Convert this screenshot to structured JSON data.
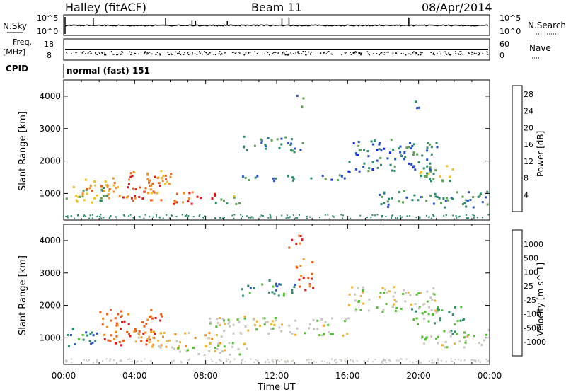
{
  "header": {
    "station": "Halley (fitACF)",
    "beam": "Beam 11",
    "date": "08/Apr/2014"
  },
  "panels": {
    "nsky": {
      "label": "N.Sky",
      "ticks": [
        "10^5",
        "10^0"
      ],
      "right_ticks": [
        "10^5",
        "10^0"
      ],
      "right_label": "N.Search"
    },
    "freq": {
      "label_line1": "Freq.",
      "label_line2": "[MHz]",
      "ticks": [
        "18",
        "8"
      ],
      "right_ticks": [
        "60",
        "0"
      ],
      "right_label": "Nave"
    },
    "cpid": {
      "label": "CPID",
      "value": "normal (fast) 151"
    }
  },
  "colors": {
    "power_scale": [
      "#1428ff",
      "#2850c8",
      "#2a8c6a",
      "#5aa050",
      "#f0c020",
      "#f59020",
      "#f05a14",
      "#e61414"
    ],
    "velocity_scale": [
      "#e61414",
      "#f05a14",
      "#f59020",
      "#f0b030",
      "#c8c8c0",
      "#50c030",
      "#2a8c6a",
      "#2850c8",
      "#1428ff"
    ]
  },
  "chart_data": [
    {
      "type": "heatmap",
      "title": "Power",
      "xlabel": "",
      "ylabel": "Slant Range [km]",
      "xlim": [
        "00:00",
        "00:00"
      ],
      "ylim": [
        180,
        4500
      ],
      "x_ticks": [
        "00:00",
        "04:00",
        "08:00",
        "12:00",
        "16:00",
        "20:00",
        "00:00"
      ],
      "y_ticks": [
        1000,
        2000,
        3000,
        4000
      ],
      "colorbar": {
        "label": "Power [dB]",
        "ticks": [
          4,
          8,
          12,
          16,
          20,
          24,
          28
        ],
        "range": [
          0,
          30
        ]
      },
      "blobs": [
        {
          "t0": 0.1,
          "t1": 2.5,
          "r0": 700,
          "r1": 1300,
          "level": 14
        },
        {
          "t0": 1.0,
          "t1": 3.2,
          "r0": 800,
          "r1": 1500,
          "level": 20
        },
        {
          "t0": 3.0,
          "t1": 5.5,
          "r0": 800,
          "r1": 1700,
          "level": 24
        },
        {
          "t0": 4.5,
          "t1": 6.0,
          "r0": 1000,
          "r1": 1800,
          "level": 20
        },
        {
          "t0": 6.0,
          "t1": 8.5,
          "r0": 700,
          "r1": 1100,
          "level": 26
        },
        {
          "t0": 8.5,
          "t1": 10.0,
          "r0": 700,
          "r1": 1000,
          "level": 14
        },
        {
          "t0": 10.0,
          "t1": 16.0,
          "r0": 1400,
          "r1": 1600,
          "level": 8
        },
        {
          "t0": 10.0,
          "t1": 13.5,
          "r0": 2300,
          "r1": 2800,
          "level": 10
        },
        {
          "t0": 13.0,
          "t1": 13.5,
          "r0": 3700,
          "r1": 4100,
          "level": 8
        },
        {
          "t0": 16.0,
          "t1": 21.0,
          "r0": 1700,
          "r1": 2700,
          "level": 8
        },
        {
          "t0": 20.0,
          "t1": 22.0,
          "r0": 1300,
          "r1": 1900,
          "level": 12
        },
        {
          "t0": 17.5,
          "t1": 24.0,
          "r0": 600,
          "r1": 1100,
          "level": 10
        },
        {
          "t0": 19.5,
          "t1": 20.0,
          "r0": 3500,
          "r1": 3900,
          "level": 8
        }
      ]
    },
    {
      "type": "heatmap",
      "title": "Velocity",
      "xlabel": "Time UT",
      "ylabel": "Slant Range [km]",
      "xlim": [
        "00:00",
        "00:00"
      ],
      "ylim": [
        180,
        4500
      ],
      "x_ticks": [
        "00:00",
        "04:00",
        "08:00",
        "12:00",
        "16:00",
        "20:00",
        "00:00"
      ],
      "y_ticks": [
        1000,
        2000,
        3000,
        4000
      ],
      "colorbar": {
        "label": "Velocity [m s^-1]",
        "ticks": [
          "1000",
          "500",
          "100",
          "25",
          "-25",
          "-100",
          "-500",
          "-1000"
        ]
      },
      "blobs": [
        {
          "t0": 0.1,
          "t1": 2.0,
          "r0": 700,
          "r1": 1300,
          "level": 6
        },
        {
          "t0": 2.0,
          "t1": 5.5,
          "r0": 800,
          "r1": 1900,
          "level": 1
        },
        {
          "t0": 4.0,
          "t1": 9.0,
          "r0": 700,
          "r1": 1200,
          "level": 3
        },
        {
          "t0": 6.0,
          "t1": 10.5,
          "r0": 500,
          "r1": 900,
          "level": 4
        },
        {
          "t0": 8.0,
          "t1": 16.0,
          "r0": 1100,
          "r1": 1700,
          "level": 4
        },
        {
          "t0": 10.0,
          "t1": 13.0,
          "r0": 2300,
          "r1": 2800,
          "level": 6
        },
        {
          "t0": 13.0,
          "t1": 14.0,
          "r0": 2500,
          "r1": 3500,
          "level": 1
        },
        {
          "t0": 12.5,
          "t1": 13.5,
          "r0": 3800,
          "r1": 4200,
          "level": 1
        },
        {
          "t0": 16.0,
          "t1": 21.0,
          "r0": 1800,
          "r1": 2600,
          "level": 4
        },
        {
          "t0": 19.5,
          "t1": 22.5,
          "r0": 1400,
          "r1": 2000,
          "level": 5
        },
        {
          "t0": 20.0,
          "t1": 24.0,
          "r0": 700,
          "r1": 1100,
          "level": 4
        },
        {
          "t0": 21.0,
          "t1": 24.0,
          "r0": 1100,
          "r1": 1300,
          "level": 5
        }
      ]
    }
  ]
}
